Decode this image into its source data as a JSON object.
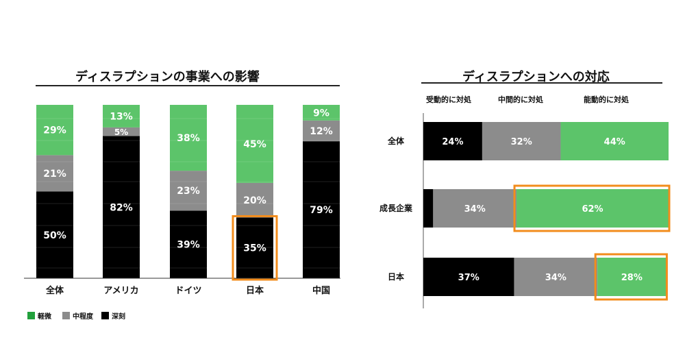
{
  "chart_data": [
    {
      "type": "bar",
      "stacked": true,
      "title": "ディスラプションの事業への影響",
      "categories": [
        "全体",
        "アメリカ",
        "ドイツ",
        "日本",
        "中国"
      ],
      "series": [
        {
          "name": "深刻",
          "color": "#000000",
          "values": [
            50,
            82,
            39,
            35,
            79
          ]
        },
        {
          "name": "中程度",
          "color": "#8c8c8c",
          "values": [
            21,
            5,
            23,
            20,
            12
          ]
        },
        {
          "name": "軽微",
          "color": "#5cc46a",
          "values": [
            29,
            13,
            38,
            45,
            9
          ]
        }
      ],
      "value_labels": [
        [
          "50%",
          "21%",
          "29%"
        ],
        [
          "82%",
          "5%",
          "13%"
        ],
        [
          "39%",
          "23%",
          "38%"
        ],
        [
          "35%",
          "20%",
          "45%"
        ],
        [
          "79%",
          "12%",
          "9%"
        ]
      ],
      "highlight": {
        "category": "日本",
        "series": "深刻",
        "color": "#f28c1c"
      },
      "legend": {
        "position": "bottom-left",
        "items": [
          "軽微",
          "中程度",
          "深刻"
        ],
        "colors": [
          "#22a03c",
          "#8c8c8c",
          "#000000"
        ]
      }
    },
    {
      "type": "bar",
      "orientation": "horizontal",
      "stacked": true,
      "title": "ディスラプションへの対応",
      "categories": [
        "全体",
        "成長企業",
        "日本"
      ],
      "column_headers": [
        "受動的に対処",
        "中間的に対処",
        "能動的に対処"
      ],
      "series": [
        {
          "name": "受動的に対処",
          "color": "#000000",
          "values": [
            24,
            4,
            37
          ]
        },
        {
          "name": "中間的に対処",
          "color": "#8c8c8c",
          "values": [
            32,
            34,
            34
          ]
        },
        {
          "name": "能動的に対処",
          "color": "#5cc46a",
          "values": [
            44,
            62,
            28
          ]
        }
      ],
      "value_labels": [
        [
          "24%",
          "32%",
          "44%"
        ],
        [
          "",
          "34%",
          "62%"
        ],
        [
          "37%",
          "34%",
          "28%"
        ]
      ],
      "highlight": [
        {
          "category": "成長企業",
          "series": "能動的に対処"
        },
        {
          "category": "日本",
          "series": "能動的に対処"
        }
      ],
      "highlight_color": "#f28c1c"
    }
  ]
}
